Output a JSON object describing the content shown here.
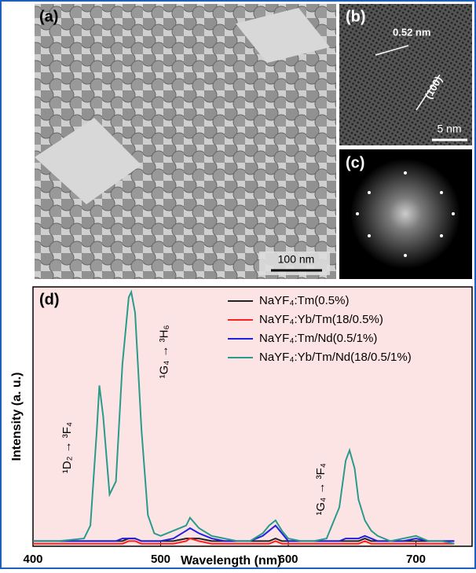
{
  "panels": {
    "a": {
      "label": "(a)",
      "scale": "100 nm"
    },
    "b": {
      "label": "(b)",
      "spacing": "0.52 nm",
      "plane": "(100)",
      "scale": "5 nm"
    },
    "c": {
      "label": "(c)"
    }
  },
  "chart_data": {
    "type": "line",
    "panel_label": "(d)",
    "x_label": "Wavelength (nm)",
    "y_label": "Intensity (a. u.)",
    "x": [
      400,
      420,
      440,
      445,
      450,
      452,
      455,
      460,
      465,
      470,
      475,
      477,
      480,
      485,
      490,
      495,
      500,
      510,
      520,
      523,
      530,
      540,
      550,
      560,
      570,
      580,
      585,
      590,
      595,
      600,
      610,
      620,
      630,
      640,
      645,
      648,
      652,
      655,
      660,
      665,
      670,
      680,
      690,
      700,
      710,
      720,
      730
    ],
    "series": [
      {
        "name": "NaYF₄:Tm(0.5%)",
        "color": "#222222",
        "values": [
          2,
          2,
          2,
          2,
          2,
          2,
          2,
          2,
          2,
          2,
          3,
          3,
          3,
          2,
          2,
          2,
          2,
          2,
          3,
          3,
          3,
          2,
          2,
          2,
          2,
          2,
          2,
          3,
          2,
          2,
          2,
          2,
          2,
          2,
          2,
          2,
          2,
          2,
          3,
          2,
          2,
          2,
          2,
          2,
          2,
          2,
          2
        ]
      },
      {
        "name": "NaYF₄:Yb/Tm(18/0.5%)",
        "color": "#ff2020",
        "values": [
          1,
          1,
          1,
          1,
          1,
          1,
          1,
          1,
          1,
          1,
          2,
          2,
          2,
          1,
          1,
          1,
          1,
          1,
          2,
          3,
          2,
          1,
          1,
          1,
          1,
          1,
          1,
          2,
          1,
          1,
          1,
          1,
          1,
          1,
          1,
          1,
          1,
          1,
          2,
          1,
          1,
          1,
          1,
          1,
          1,
          1,
          1
        ]
      },
      {
        "name": "NaYF₄:Tm/Nd(0.5/1%)",
        "color": "#2020e0",
        "values": [
          2,
          2,
          2,
          2,
          2,
          2,
          2,
          2,
          2,
          3,
          3,
          3,
          3,
          2,
          2,
          2,
          2,
          3,
          6,
          7,
          5,
          3,
          2,
          2,
          2,
          4,
          6,
          8,
          5,
          2,
          2,
          2,
          2,
          2,
          3,
          3,
          3,
          3,
          4,
          3,
          2,
          2,
          2,
          3,
          2,
          2,
          2
        ]
      },
      {
        "name": "NaYF₄:Yb/Tm/Nd(18/0.5/1%)",
        "color": "#2a9a8a",
        "values": [
          2,
          2,
          3,
          8,
          45,
          62,
          50,
          20,
          25,
          70,
          96,
          98,
          90,
          45,
          12,
          5,
          4,
          6,
          8,
          11,
          7,
          4,
          3,
          2,
          2,
          5,
          8,
          10,
          6,
          3,
          2,
          2,
          3,
          15,
          33,
          37,
          30,
          18,
          10,
          6,
          4,
          2,
          3,
          4,
          2,
          2,
          1
        ]
      }
    ],
    "annotations": [
      {
        "text": "¹D₂ → ³F₄",
        "x": 427,
        "y": 38
      },
      {
        "text": "¹G₄ → ³H₆",
        "x": 503,
        "y": 75
      },
      {
        "text": "¹G₄ → ³F₄",
        "x": 626,
        "y": 22
      }
    ],
    "xlim": [
      400,
      744
    ],
    "ylim": [
      0,
      100
    ],
    "xticks": [
      400,
      500,
      600,
      700
    ],
    "legend": "top-right",
    "background": "#fde4e4"
  }
}
